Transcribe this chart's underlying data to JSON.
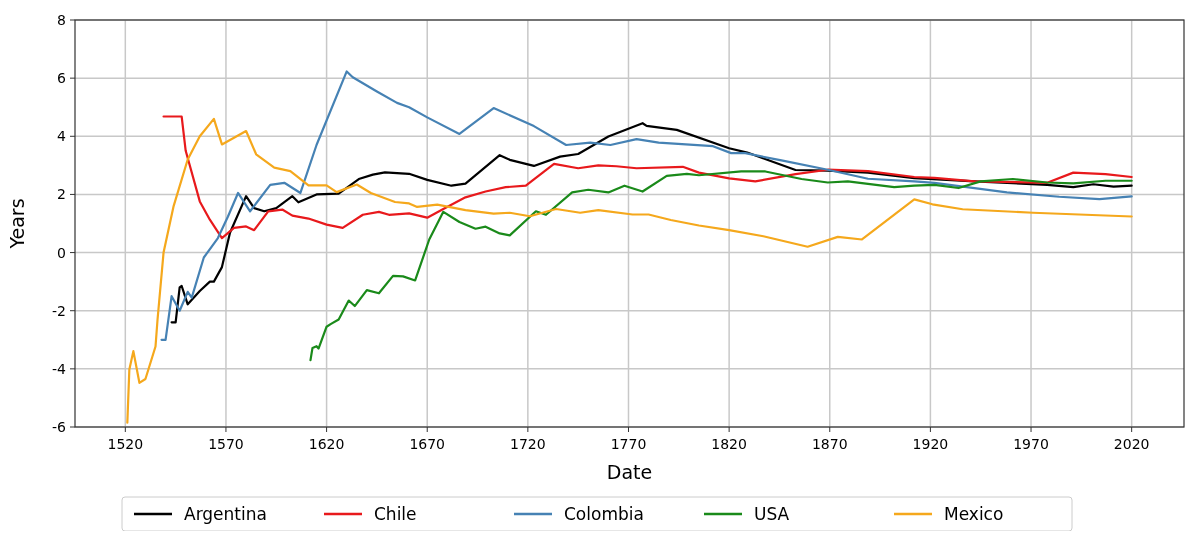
{
  "chart_data": {
    "type": "line",
    "xlabel": "Date",
    "ylabel": "Years",
    "xlim": [
      1495,
      2046
    ],
    "ylim": [
      -6,
      8
    ],
    "xticks": [
      1520,
      1570,
      1620,
      1670,
      1720,
      1770,
      1820,
      1870,
      1920,
      1970,
      2020
    ],
    "yticks": [
      -6,
      -4,
      -2,
      0,
      2,
      4,
      6,
      8
    ],
    "grid": true,
    "legend": "bottom",
    "line_style": "solid",
    "marker": "none",
    "series": [
      {
        "name": "Argentina",
        "color": "#000000",
        "x": [
          1543,
          1545,
          1547,
          1548,
          1551,
          1557,
          1562,
          1564,
          1568,
          1572,
          1580,
          1584,
          1589,
          1595,
          1603,
          1606,
          1615,
          1626,
          1636,
          1643,
          1649,
          1661,
          1670,
          1682,
          1689,
          1706,
          1711,
          1723,
          1736,
          1745,
          1760,
          1777,
          1779,
          1794,
          1820,
          1829,
          1853,
          1869,
          1889,
          1912,
          1942,
          1978,
          1991,
          2001,
          2011,
          2020
        ],
        "values": [
          -2.4,
          -2.4,
          -1.2,
          -1.15,
          -1.78,
          -1.32,
          -1.0,
          -1.0,
          -0.5,
          0.68,
          1.94,
          1.53,
          1.42,
          1.53,
          1.94,
          1.73,
          2.0,
          2.03,
          2.53,
          2.68,
          2.76,
          2.71,
          2.5,
          2.3,
          2.37,
          3.35,
          3.19,
          2.98,
          3.3,
          3.39,
          3.99,
          4.45,
          4.36,
          4.22,
          3.59,
          3.44,
          2.84,
          2.82,
          2.75,
          2.56,
          2.45,
          2.33,
          2.25,
          2.35,
          2.27,
          2.3
        ]
      },
      {
        "name": "Chile",
        "color": "#e8191c",
        "x": [
          1539,
          1548,
          1550,
          1557,
          1562,
          1568,
          1574,
          1580,
          1584,
          1591,
          1598,
          1603,
          1611,
          1620,
          1628,
          1638,
          1646,
          1651,
          1661,
          1670,
          1678,
          1689,
          1699,
          1709,
          1719,
          1733,
          1745,
          1755,
          1764,
          1774,
          1797,
          1805,
          1820,
          1833,
          1853,
          1869,
          1889,
          1912,
          1922,
          1942,
          1978,
          1991,
          2007,
          2020
        ],
        "values": [
          4.68,
          4.68,
          3.5,
          1.76,
          1.13,
          0.5,
          0.85,
          0.9,
          0.77,
          1.42,
          1.48,
          1.27,
          1.17,
          0.96,
          0.85,
          1.3,
          1.4,
          1.3,
          1.35,
          1.2,
          1.5,
          1.9,
          2.1,
          2.25,
          2.3,
          3.05,
          2.9,
          3.0,
          2.97,
          2.9,
          2.95,
          2.75,
          2.55,
          2.45,
          2.7,
          2.85,
          2.8,
          2.6,
          2.57,
          2.45,
          2.4,
          2.75,
          2.7,
          2.6
        ]
      },
      {
        "name": "Colombia",
        "color": "#4682b4",
        "x": [
          1538,
          1540,
          1543,
          1547,
          1551,
          1553,
          1559,
          1566,
          1571,
          1576,
          1582,
          1592,
          1599,
          1607,
          1615,
          1630,
          1633,
          1645,
          1655,
          1661,
          1670,
          1686,
          1703,
          1723,
          1739,
          1751,
          1761,
          1774,
          1785,
          1812,
          1821,
          1828,
          1846,
          1869,
          1889,
          1912,
          1922,
          1958,
          1984,
          2004,
          2020
        ],
        "values": [
          -3.0,
          -3.0,
          -1.5,
          -2.0,
          -1.35,
          -1.55,
          -0.17,
          0.5,
          1.24,
          2.05,
          1.42,
          2.33,
          2.4,
          2.05,
          3.7,
          6.23,
          6.03,
          5.54,
          5.15,
          5.0,
          4.65,
          4.08,
          4.97,
          4.35,
          3.7,
          3.78,
          3.7,
          3.9,
          3.78,
          3.66,
          3.42,
          3.42,
          3.17,
          2.85,
          2.54,
          2.45,
          2.4,
          2.07,
          1.92,
          1.84,
          1.93
        ]
      },
      {
        "name": "USA",
        "color": "#1a8a1a",
        "x": [
          1612,
          1613,
          1615,
          1616,
          1620,
          1622,
          1626,
          1631,
          1634,
          1640,
          1646,
          1653,
          1658,
          1664,
          1671,
          1678,
          1686,
          1694,
          1699,
          1706,
          1711,
          1724,
          1729,
          1742,
          1750,
          1760,
          1768,
          1777,
          1789,
          1799,
          1805,
          1826,
          1838,
          1856,
          1869,
          1879,
          1902,
          1912,
          1922,
          1934,
          1945,
          1961,
          1978,
          1991,
          2007,
          2020
        ],
        "values": [
          -3.7,
          -3.28,
          -3.22,
          -3.3,
          -2.55,
          -2.46,
          -2.3,
          -1.65,
          -1.84,
          -1.29,
          -1.4,
          -0.8,
          -0.82,
          -0.96,
          0.45,
          1.4,
          1.05,
          0.82,
          0.89,
          0.66,
          0.59,
          1.42,
          1.3,
          2.07,
          2.16,
          2.07,
          2.3,
          2.1,
          2.64,
          2.71,
          2.66,
          2.79,
          2.79,
          2.53,
          2.41,
          2.45,
          2.25,
          2.3,
          2.33,
          2.22,
          2.45,
          2.53,
          2.41,
          2.38,
          2.47,
          2.47
        ]
      },
      {
        "name": "Mexico",
        "color": "#f5a81c",
        "x": [
          1521,
          1522,
          1524,
          1527,
          1530,
          1535,
          1536,
          1539,
          1544,
          1551,
          1557,
          1564,
          1568,
          1574,
          1580,
          1585,
          1594,
          1602,
          1611,
          1620,
          1625,
          1635,
          1642,
          1654,
          1661,
          1665,
          1675,
          1689,
          1703,
          1711,
          1721,
          1734,
          1746,
          1755,
          1772,
          1780,
          1791,
          1805,
          1820,
          1837,
          1859,
          1874,
          1886,
          1912,
          1921,
          1936,
          1971,
          2020
        ],
        "values": [
          -5.85,
          -4.02,
          -3.39,
          -4.48,
          -4.35,
          -3.23,
          -2.31,
          0,
          1.6,
          3.2,
          4.0,
          4.6,
          3.72,
          3.95,
          4.18,
          3.38,
          2.92,
          2.8,
          2.31,
          2.31,
          2.08,
          2.34,
          2.05,
          1.74,
          1.69,
          1.57,
          1.65,
          1.46,
          1.34,
          1.37,
          1.25,
          1.5,
          1.37,
          1.46,
          1.31,
          1.31,
          1.12,
          0.93,
          0.77,
          0.56,
          0.2,
          0.54,
          0.45,
          1.83,
          1.66,
          1.49,
          1.37,
          1.24
        ]
      }
    ]
  }
}
